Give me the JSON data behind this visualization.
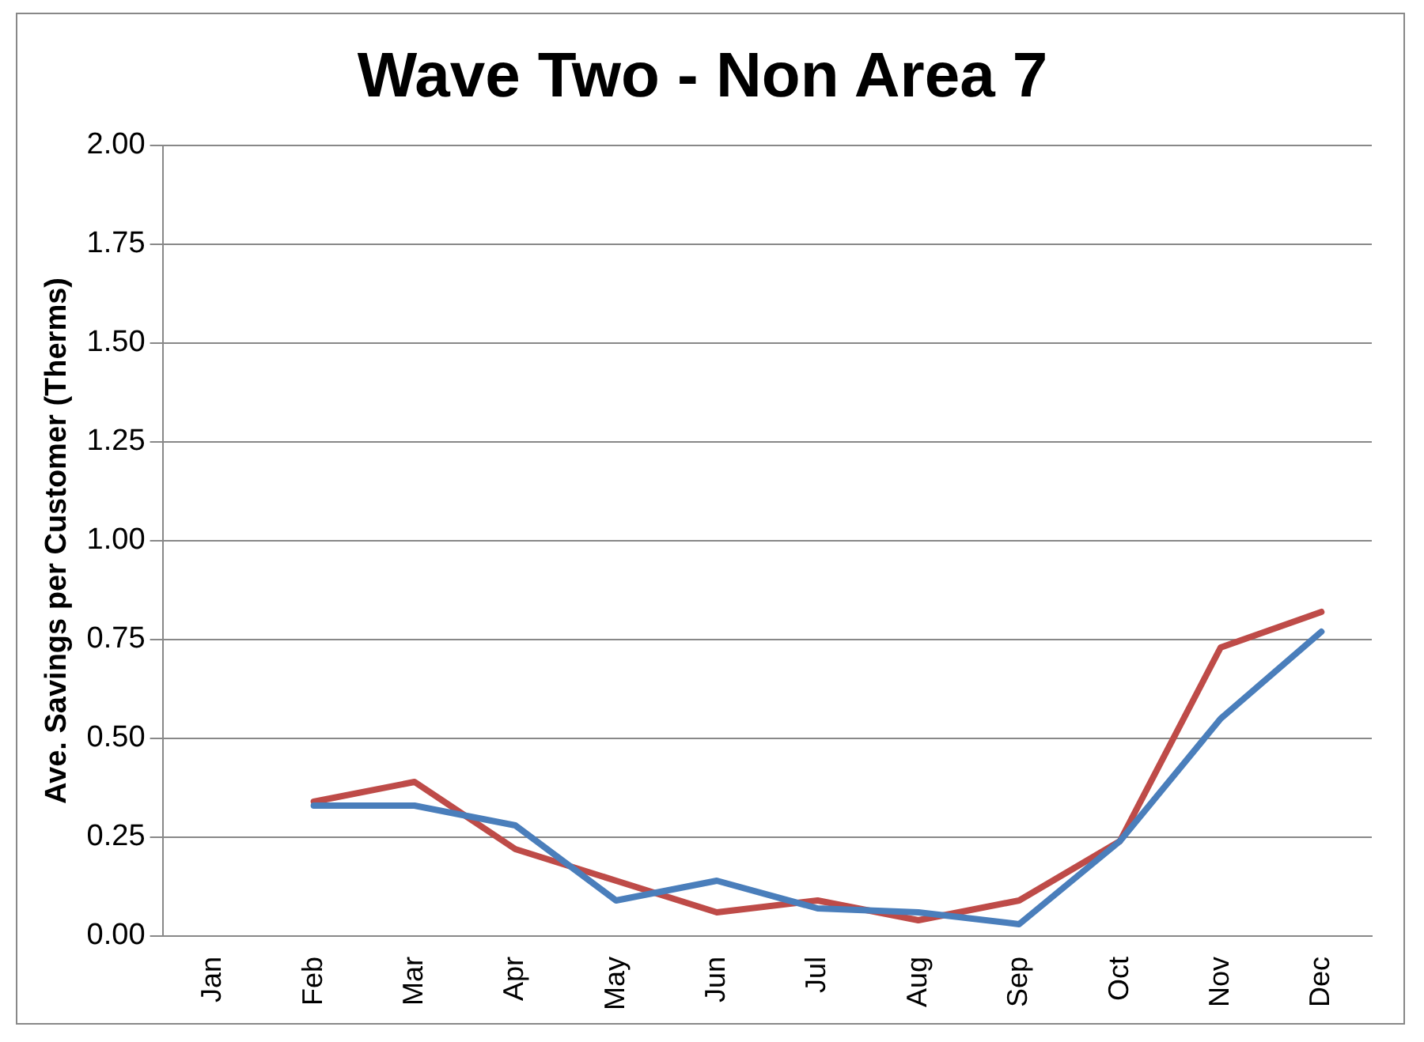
{
  "chart_data": {
    "type": "line",
    "title": "Wave Two - Non Area 7",
    "ylabel": "Ave. Savings per Customer (Therms)",
    "categories": [
      "Jan",
      "Feb",
      "Mar",
      "Apr",
      "May",
      "Jun",
      "Jul",
      "Aug",
      "Sep",
      "Oct",
      "Nov",
      "Dec"
    ],
    "series": [
      {
        "color": "#4a7ebb",
        "values": [
          null,
          0.33,
          0.33,
          0.28,
          0.09,
          0.14,
          0.07,
          0.06,
          0.03,
          0.24,
          0.55,
          0.77
        ]
      },
      {
        "color": "#be4b48",
        "values": [
          null,
          0.34,
          0.39,
          0.22,
          0.14,
          0.06,
          0.09,
          0.04,
          0.09,
          0.24,
          0.73,
          0.82
        ]
      }
    ],
    "ylim": [
      0,
      2
    ],
    "yticks": [
      {
        "value": 0,
        "label": "0.00"
      },
      {
        "value": 0.25,
        "label": "0.25"
      },
      {
        "value": 0.5,
        "label": "0.50"
      },
      {
        "value": 0.75,
        "label": "0.75"
      },
      {
        "value": 1,
        "label": "1.00"
      },
      {
        "value": 1.25,
        "label": "1.25"
      },
      {
        "value": 1.5,
        "label": "1.50"
      },
      {
        "value": 1.75,
        "label": "1.75"
      },
      {
        "value": 2,
        "label": "2.00"
      }
    ],
    "grid": "y",
    "legend": false,
    "marker": "none",
    "line_style": "solid"
  }
}
